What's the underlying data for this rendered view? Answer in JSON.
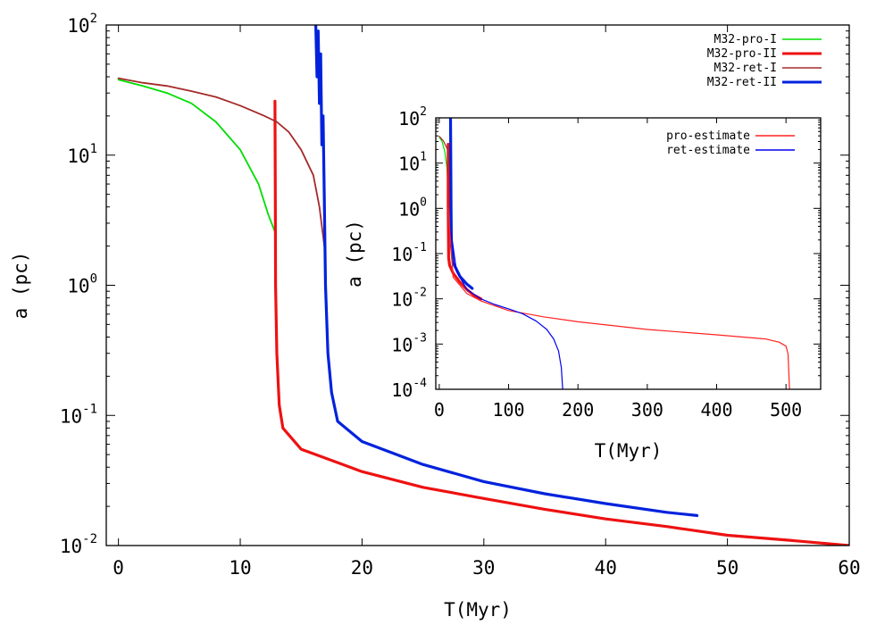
{
  "chart_data": [
    {
      "type": "line",
      "title": "",
      "xlabel": "T(Myr)",
      "ylabel": "a (pc)",
      "xlim": [
        -1,
        60
      ],
      "ylim": [
        0.01,
        100
      ],
      "yscale": "log",
      "grid": false,
      "legend": "top-right",
      "x_ticks": [
        "0",
        "10",
        "20",
        "30",
        "40",
        "50",
        "60"
      ],
      "y_ticks": [
        {
          "base": "10",
          "exp": "2"
        },
        {
          "base": "10",
          "exp": "1"
        },
        {
          "base": "10",
          "exp": "0"
        },
        {
          "base": "10",
          "exp": "-1"
        },
        {
          "base": "10",
          "exp": "-2"
        }
      ],
      "series": [
        {
          "name": "M32-pro-I",
          "color": "#00dd00",
          "x": [
            0,
            2,
            4,
            6,
            8,
            10,
            11.5,
            12.3,
            12.9
          ],
          "y": [
            38,
            34,
            30,
            25,
            18,
            11,
            6,
            3.5,
            2.5
          ]
        },
        {
          "name": "M32-pro-II",
          "color": "#ee1111",
          "x": [
            12.85,
            12.88,
            12.9,
            13.0,
            13.2,
            13.5,
            15,
            20,
            25,
            30,
            35,
            40,
            45,
            50,
            55,
            60
          ],
          "y": [
            26,
            5,
            1.0,
            0.3,
            0.12,
            0.08,
            0.055,
            0.037,
            0.028,
            0.023,
            0.019,
            0.016,
            0.014,
            0.012,
            0.011,
            0.01
          ]
        },
        {
          "name": "M32-ret-I",
          "color": "#a52a2a",
          "x": [
            0,
            2,
            4,
            6,
            8,
            10,
            12,
            13,
            14,
            15,
            16,
            16.5,
            17
          ],
          "y": [
            39,
            36,
            34,
            31,
            28,
            24,
            20,
            18,
            15,
            11,
            7,
            4,
            1.7
          ]
        },
        {
          "name": "M32-ret-II",
          "color": "#0022dd",
          "x": [
            16.2,
            16.3,
            16.4,
            16.5,
            16.6,
            16.7,
            16.8,
            16.9,
            17.0,
            17.2,
            17.5,
            18,
            20,
            25,
            30,
            35,
            40,
            45,
            47.5
          ],
          "y": [
            100,
            40,
            90,
            25,
            60,
            12,
            20,
            5,
            1.0,
            0.3,
            0.15,
            0.09,
            0.063,
            0.042,
            0.031,
            0.025,
            0.021,
            0.018,
            0.017
          ]
        }
      ]
    },
    {
      "type": "line",
      "title": "",
      "xlabel": "T(Myr)",
      "ylabel": "a (pc)",
      "xlim": [
        -5,
        550
      ],
      "ylim": [
        0.0001,
        100
      ],
      "yscale": "log",
      "grid": false,
      "legend": "top-right",
      "x_ticks": [
        "0",
        "100",
        "200",
        "300",
        "400",
        "500"
      ],
      "y_ticks": [
        {
          "base": "10",
          "exp": "2"
        },
        {
          "base": "10",
          "exp": "1"
        },
        {
          "base": "10",
          "exp": "0"
        },
        {
          "base": "10",
          "exp": "-1"
        },
        {
          "base": "10",
          "exp": "-2"
        },
        {
          "base": "10",
          "exp": "-3"
        },
        {
          "base": "10",
          "exp": "-4"
        }
      ],
      "series": [
        {
          "name": "M32-pro-I",
          "color": "#00dd00",
          "x": [
            0,
            4,
            8,
            11,
            12.9
          ],
          "y": [
            38,
            30,
            18,
            8,
            2.5
          ]
        },
        {
          "name": "M32-pro-II",
          "color": "#ee1111",
          "x": [
            12.85,
            12.9,
            13.5,
            15,
            20,
            30,
            40,
            50,
            60
          ],
          "y": [
            26,
            1.0,
            0.08,
            0.055,
            0.037,
            0.023,
            0.016,
            0.012,
            0.01
          ]
        },
        {
          "name": "M32-ret-I",
          "color": "#a52a2a",
          "x": [
            0,
            6,
            12,
            15,
            17
          ],
          "y": [
            39,
            31,
            20,
            11,
            1.7
          ]
        },
        {
          "name": "M32-ret-II",
          "color": "#0022dd",
          "x": [
            16.2,
            16.5,
            17.0,
            17.5,
            20,
            30,
            40,
            47.5
          ],
          "y": [
            100,
            25,
            1.0,
            0.15,
            0.063,
            0.031,
            0.021,
            0.017
          ]
        },
        {
          "name": "pro-estimate",
          "color": "#ff2222",
          "x": [
            12.9,
            20,
            40,
            60,
            100,
            150,
            200,
            300,
            400,
            470,
            490,
            500,
            503,
            505
          ],
          "y": [
            1.0,
            0.03,
            0.013,
            0.009,
            0.0055,
            0.004,
            0.0031,
            0.0021,
            0.0016,
            0.0013,
            0.0011,
            0.0009,
            0.0006,
            0.0001
          ]
        },
        {
          "name": "ret-estimate",
          "color": "#0000ee",
          "x": [
            17,
            25,
            40,
            60,
            80,
            100,
            120,
            140,
            155,
            165,
            172,
            176,
            178
          ],
          "y": [
            0.3,
            0.04,
            0.016,
            0.01,
            0.0075,
            0.006,
            0.0047,
            0.0032,
            0.0021,
            0.0013,
            0.0007,
            0.0003,
            0.0001
          ]
        }
      ]
    }
  ]
}
